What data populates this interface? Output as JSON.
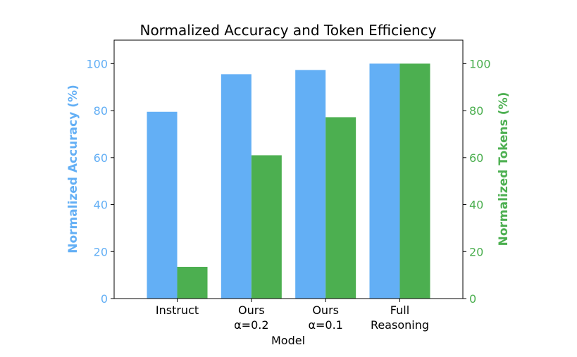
{
  "chart_data": {
    "type": "bar",
    "title": "Normalized Accuracy and Token Efficiency",
    "xlabel": "Model",
    "categories": [
      [
        "Instruct"
      ],
      [
        "Ours",
        "α=0.2"
      ],
      [
        "Ours",
        "α=0.1"
      ],
      [
        "Full",
        "Reasoning"
      ]
    ],
    "series": [
      {
        "name": "Normalized Accuracy (%)",
        "axis": "left",
        "color": "#63aff5",
        "values": [
          79.5,
          95.5,
          97.3,
          100
        ]
      },
      {
        "name": "Normalized Tokens (%)",
        "axis": "right",
        "color": "#4caf50",
        "values": [
          13.5,
          61,
          77.2,
          100
        ]
      }
    ],
    "y_left": {
      "label": "Normalized Accuracy (%)",
      "ylim": [
        0,
        110
      ],
      "ticks": [
        0,
        20,
        40,
        60,
        80,
        100
      ],
      "color": "#63aff5"
    },
    "y_right": {
      "label": "Normalized Tokens (%)",
      "ylim": [
        0,
        110
      ],
      "ticks": [
        0,
        20,
        40,
        60,
        80,
        100
      ],
      "color": "#4caf50"
    },
    "grid": false,
    "legend": "none"
  }
}
